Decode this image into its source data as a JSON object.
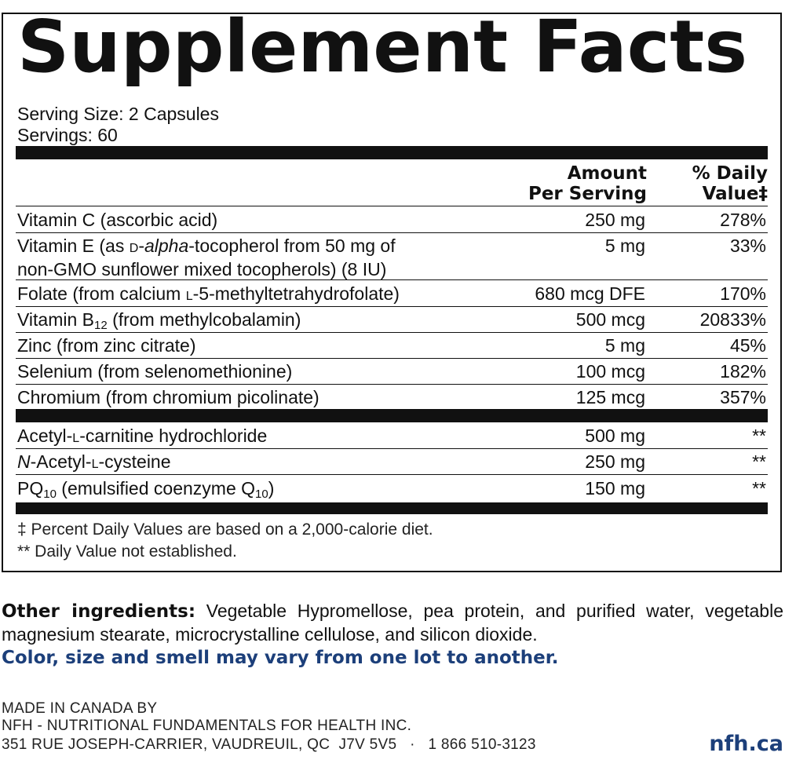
{
  "title": "Supplement Facts",
  "serving_size": "Serving Size: 2 Capsules",
  "servings": "Servings: 60",
  "columns": {
    "amount_line1": "Amount",
    "amount_line2": "Per Serving",
    "dv_line1": "% Daily",
    "dv_line2": "Value‡"
  },
  "nutrients": [
    {
      "name": "Vitamin C (ascorbic acid)",
      "amount": "250 mg",
      "dv": "278%"
    },
    {
      "name_line1_pre": "Vitamin E (as ",
      "name_line1_sc": "d",
      "name_line1_dash": "-",
      "name_line1_it": "alpha",
      "name_line1_post": "-tocopherol from 50 mg of",
      "name_line2": "non-GMO sunflower mixed tocopherols) (8 IU)",
      "amount": "5 mg",
      "dv": "33%"
    },
    {
      "name_pre": "Folate (from calcium ",
      "name_sc": "l",
      "name_post": "-5-methyltetrahydrofolate)",
      "amount": "680 mcg DFE",
      "dv": "170%"
    },
    {
      "name_pre": "Vitamin B",
      "name_sub": "12",
      "name_post": " (from methylcobalamin)",
      "amount": "500 mcg",
      "dv": "20833%"
    },
    {
      "name": "Zinc (from zinc citrate)",
      "amount": "5 mg",
      "dv": "45%"
    },
    {
      "name": "Selenium (from selenomethionine)",
      "amount": "100 mcg",
      "dv": "182%"
    },
    {
      "name": "Chromium (from chromium picolinate)",
      "amount": "125 mcg",
      "dv": "357%"
    }
  ],
  "others": [
    {
      "name_pre": "Acetyl-",
      "name_sc": "l",
      "name_post": "-carnitine hydrochloride",
      "amount": "500 mg",
      "dv": "**"
    },
    {
      "name_it": "N",
      "name_pre": "-Acetyl-",
      "name_sc": "l",
      "name_post": "-cysteine",
      "amount": "250 mg",
      "dv": "**"
    },
    {
      "name_pre": "PQ",
      "name_sub": "10",
      "name_mid": " (emulsified coenzyme Q",
      "name_sub2": "10",
      "name_post": ")",
      "amount": "150 mg",
      "dv": "**"
    }
  ],
  "footnotes": {
    "note1": "‡ Percent Daily Values are based on a 2,000-calorie diet.",
    "note2": "** Daily Value not established."
  },
  "other_ingredients": {
    "label": "Other ingredients:",
    "text": " Vegetable Hypromellose, pea protein, and purified water, vegetable magnesium stearate, microcrystalline cellulose, and silicon dioxide."
  },
  "lot_notice": "Color, size and smell may vary from one lot to another.",
  "manufacturer": {
    "line1": "MADE IN CANADA BY",
    "line2": "NFH - NUTRITIONAL FUNDAMENTALS FOR HEALTH INC.",
    "line3": "351 RUE JOSEPH-CARRIER, VAUDREUIL, QC  J7V 5V5   ·   1 866 510-3123"
  },
  "website": "nfh.ca",
  "colors": {
    "brand_blue": "#1c3f7a",
    "ink": "#111111"
  }
}
